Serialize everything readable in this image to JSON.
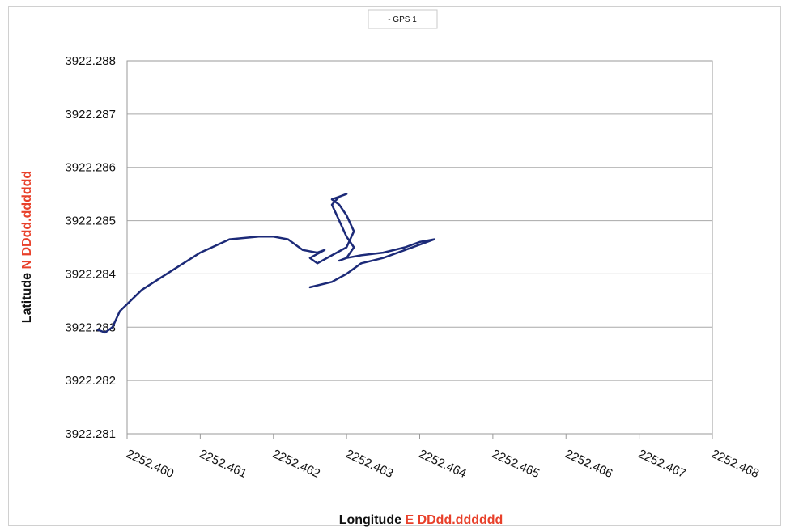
{
  "chart_data": {
    "type": "line",
    "legend": {
      "entries": [
        "- GPS 1"
      ],
      "placement": "top-center"
    },
    "xlabel": {
      "main": "Longitude ",
      "accent": "E DDdd.dddddd"
    },
    "ylabel": {
      "main": "Latitude ",
      "accent": "N DDdd.dddddd"
    },
    "xlim": [
      2252.46,
      2252.468
    ],
    "ylim": [
      3922.281,
      3922.288
    ],
    "xticks": [
      "2252.460",
      "2252.461",
      "2252.462",
      "2252.463",
      "2252.464",
      "2252.465",
      "2252.466",
      "2252.467",
      "2252.468"
    ],
    "yticks": [
      "3922.288",
      "3922.287",
      "3922.286",
      "3922.285",
      "3922.284",
      "3922.283",
      "3922.282",
      "3922.281"
    ],
    "grid": "horizontal",
    "series": [
      {
        "name": "GPS 1",
        "color": "#1c2a78",
        "x": [
          2252.4596,
          2252.4597,
          2252.4598,
          2252.4599,
          2252.4602,
          2252.4606,
          2252.461,
          2252.4614,
          2252.4618,
          2252.462,
          2252.4622,
          2252.4624,
          2252.4626,
          2252.4627,
          2252.4625,
          2252.4626,
          2252.4628,
          2252.463,
          2252.4631,
          2252.463,
          2252.4629,
          2252.4628,
          2252.4629,
          2252.463,
          2252.4629,
          2252.4628,
          2252.4629,
          2252.463,
          2252.4631,
          2252.463,
          2252.4629,
          2252.463,
          2252.4632,
          2252.4635,
          2252.4638,
          2252.464,
          2252.4642,
          2252.464,
          2252.4638,
          2252.4635,
          2252.4632,
          2252.463,
          2252.4628,
          2252.4625
        ],
        "y": [
          3922.28295,
          3922.2829,
          3922.283,
          3922.2833,
          3922.2837,
          3922.28405,
          3922.2844,
          3922.28465,
          3922.2847,
          3922.2847,
          3922.28465,
          3922.28445,
          3922.2844,
          3922.28445,
          3922.2843,
          3922.2842,
          3922.28435,
          3922.2845,
          3922.2848,
          3922.2851,
          3922.2853,
          3922.2854,
          3922.28545,
          3922.2855,
          3922.28545,
          3922.2853,
          3922.285,
          3922.2847,
          3922.2845,
          3922.2843,
          3922.28425,
          3922.2843,
          3922.28435,
          3922.2844,
          3922.2845,
          3922.2846,
          3922.28465,
          3922.28455,
          3922.28445,
          3922.2843,
          3922.2842,
          3922.284,
          3922.28385,
          3922.28375
        ]
      }
    ]
  }
}
